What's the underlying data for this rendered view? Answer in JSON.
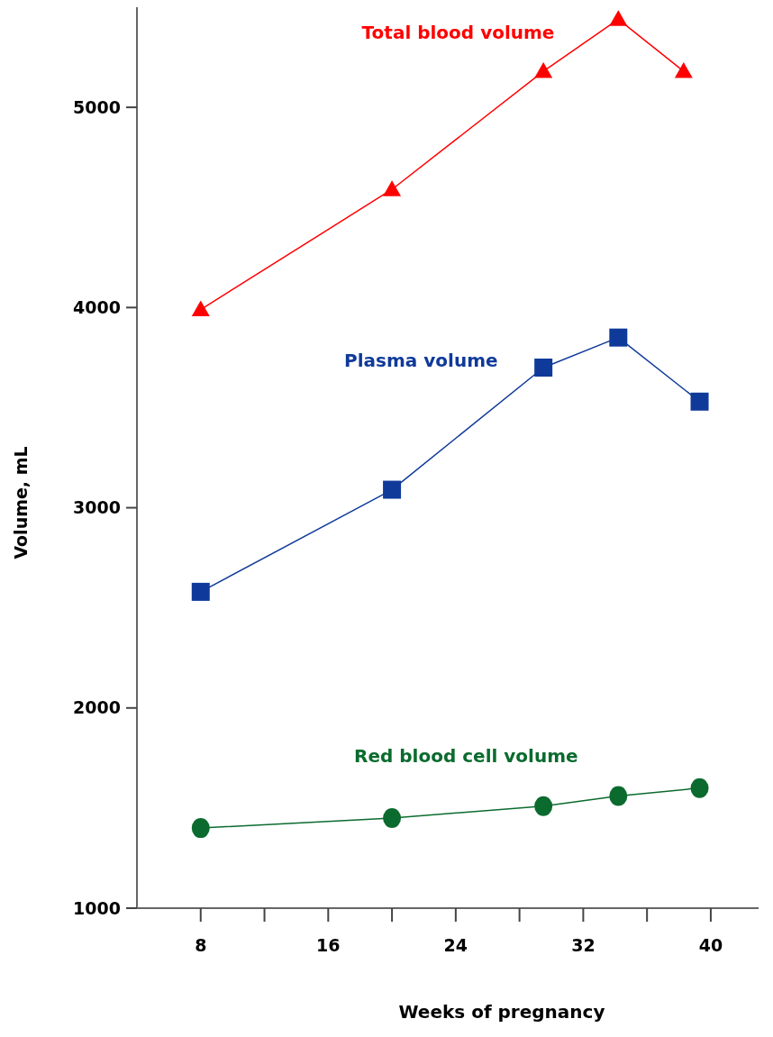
{
  "chart_data": {
    "type": "line",
    "xlabel": "Weeks of pregnancy",
    "ylabel": "Volume, mL",
    "xlim": [
      4,
      43
    ],
    "ylim": [
      1000,
      5500
    ],
    "xticks": [
      8,
      {
        "value": 12,
        "label": null
      },
      16,
      {
        "value": 20,
        "label": null
      },
      24,
      {
        "value": 28,
        "label": null
      },
      32,
      {
        "value": 36,
        "label": null
      },
      40
    ],
    "yticks": [
      1000,
      2000,
      3000,
      4000,
      5000
    ],
    "grid": false,
    "legend": false,
    "series": [
      {
        "name": "Total blood volume",
        "color": "#ff0000",
        "marker": "triangle",
        "x": [
          8,
          20,
          29.5,
          34.2,
          38.3
        ],
        "values": [
          3990,
          4590,
          5180,
          5440,
          5180
        ]
      },
      {
        "name": "Plasma volume",
        "color": "#103a9a",
        "marker": "square",
        "x": [
          8,
          20,
          29.5,
          34.2,
          39.3
        ],
        "values": [
          2580,
          3090,
          3700,
          3850,
          3530
        ]
      },
      {
        "name": "Red blood cell volume",
        "color": "#0b6b2e",
        "marker": "circle",
        "x": [
          8,
          20,
          29.5,
          34.2,
          39.3
        ],
        "values": [
          1400,
          1450,
          1510,
          1560,
          1600
        ]
      }
    ]
  }
}
